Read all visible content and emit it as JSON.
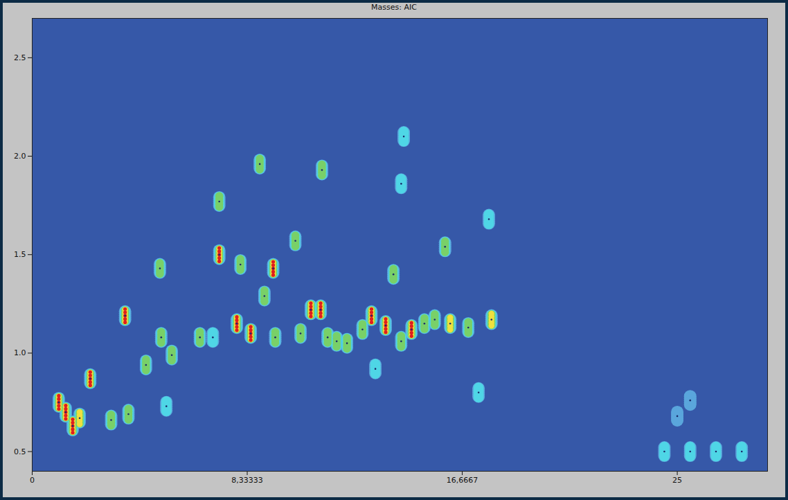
{
  "chart_data": {
    "type": "heatmap",
    "title": "Masses: AIC",
    "xlim": [
      0,
      28.5
    ],
    "ylim": [
      0.4,
      2.7
    ],
    "xticks": [
      0,
      {
        "value": 8.33333,
        "label": "8,33333"
      },
      {
        "value": 16.6667,
        "label": "16,6667"
      },
      25
    ],
    "yticks": [
      0.5,
      {
        "value": 1,
        "label": "1.0"
      },
      1.5,
      {
        "value": 2,
        "label": "2.0"
      },
      2.5
    ],
    "peaks": {
      "x": [
        1.3,
        1.57,
        1.03,
        1.84,
        2.25,
        3.6,
        3.73,
        3.06,
        4.41,
        4.95,
        5.0,
        5.41,
        5.2,
        6.5,
        7.0,
        7.25,
        7.25,
        7.93,
        8.07,
        8.47,
        8.82,
        9.0,
        9.34,
        9.42,
        10.2,
        10.4,
        10.8,
        11.23,
        11.18,
        11.45,
        11.8,
        12.2,
        12.8,
        13.15,
        13.7,
        14.0,
        14.3,
        14.7,
        15.2,
        15.6,
        16.0,
        16.2,
        16.9,
        17.7,
        17.8,
        14.4,
        13.3,
        14.3,
        17.3,
        25.0,
        25.5,
        24.5,
        25.5,
        26.5,
        27.5
      ],
      "y": [
        0.7,
        0.63,
        0.75,
        0.67,
        0.87,
        1.19,
        0.69,
        0.66,
        0.94,
        1.43,
        1.08,
        0.99,
        0.73,
        1.08,
        1.08,
        1.5,
        1.77,
        1.15,
        1.45,
        1.1,
        1.96,
        1.29,
        1.43,
        1.08,
        1.57,
        1.1,
        1.22,
        1.93,
        1.22,
        1.08,
        1.06,
        1.05,
        1.12,
        1.19,
        1.14,
        1.4,
        1.06,
        1.12,
        1.15,
        1.17,
        1.54,
        1.15,
        1.13,
        1.68,
        1.17,
        2.1,
        0.92,
        1.86,
        0.8,
        0.68,
        0.76,
        0.5,
        0.5,
        0.5,
        0.5
      ],
      "intensity": [
        100,
        95,
        85,
        80,
        100,
        100,
        60,
        60,
        55,
        45,
        55,
        50,
        35,
        45,
        40,
        100,
        50,
        100,
        60,
        90,
        45,
        45,
        100,
        55,
        50,
        55,
        100,
        55,
        100,
        55,
        45,
        45,
        50,
        100,
        100,
        45,
        45,
        95,
        50,
        50,
        55,
        65,
        45,
        40,
        65,
        35,
        35,
        30,
        25,
        20,
        20,
        30,
        30,
        30,
        30
      ]
    }
  }
}
